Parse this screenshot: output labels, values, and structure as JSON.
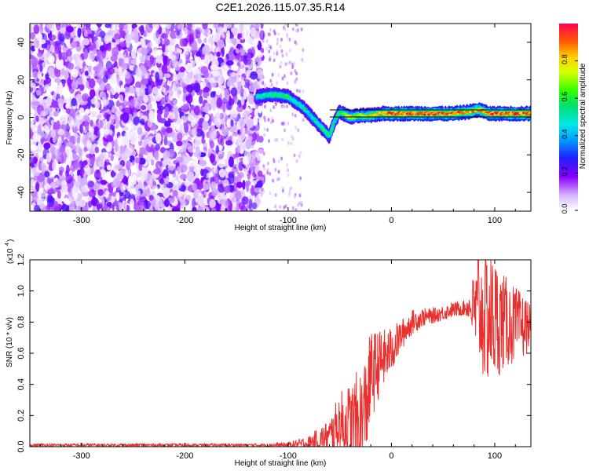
{
  "title": "C2E1.2026.115.07.35.R14",
  "chart_data": [
    {
      "type": "heatmap",
      "name": "spectrogram",
      "xlabel": "Height of straight line (km)",
      "ylabel": "Frequency (Hz)",
      "xlim": [
        -350,
        135
      ],
      "ylim": [
        -50,
        50
      ],
      "xticks": [
        -300,
        -200,
        -100,
        0,
        100
      ],
      "xtick_labels": [
        "-300",
        "-200",
        "-100",
        "0",
        "100"
      ],
      "yticks": [
        -40,
        -20,
        0,
        20,
        40
      ],
      "ytick_labels": [
        "-40",
        "-20",
        "0",
        "20",
        "40"
      ],
      "colorbar": {
        "label": "Normalized spectral amplitude",
        "range": [
          0,
          1
        ],
        "ticks": [
          0.0,
          0.2,
          0.4,
          0.6,
          0.8
        ],
        "tick_labels": [
          "0.0",
          "0.2",
          "0.4",
          "0.6",
          "0.8"
        ]
      },
      "noise_region_x": [
        -350,
        -125
      ],
      "signal_track": {
        "x": [
          -130,
          -120,
          -110,
          -100,
          -95,
          -90,
          -85,
          -80,
          -75,
          -70,
          -65,
          -60,
          -55,
          -50,
          -40,
          -30,
          -20,
          -10,
          0,
          20,
          40,
          60,
          75,
          85,
          95,
          110,
          135
        ],
        "y": [
          11,
          12,
          12,
          11,
          9,
          7,
          5,
          2,
          -1,
          -4,
          -7,
          -10,
          -2,
          3,
          0,
          1,
          1,
          2,
          2,
          2,
          2,
          2,
          3,
          4,
          2,
          2,
          2
        ],
        "intensity": [
          0.5,
          0.55,
          0.55,
          0.55,
          0.5,
          0.5,
          0.5,
          0.45,
          0.5,
          0.5,
          0.55,
          0.6,
          0.5,
          0.6,
          0.75,
          0.7,
          0.75,
          0.8,
          0.9,
          0.9,
          0.92,
          0.92,
          0.85,
          0.85,
          0.9,
          0.9,
          0.92
        ]
      }
    },
    {
      "type": "line",
      "name": "snr",
      "xlabel": "Height of straight line (km)",
      "ylabel": "SNR (10 * v/v)",
      "yscale_label": "(x10",
      "yscale_exponent": "4",
      "xlim": [
        -350,
        135
      ],
      "ylim": [
        0,
        1.2
      ],
      "xticks": [
        -300,
        -200,
        -100,
        0,
        100
      ],
      "xtick_labels": [
        "-300",
        "-200",
        "-100",
        "0",
        "100"
      ],
      "yticks": [
        0.0,
        0.2,
        0.4,
        0.6,
        0.8,
        1.0,
        1.2
      ],
      "ytick_labels": [
        "0.0",
        "0.2",
        "0.4",
        "0.6",
        "0.8",
        "1.0",
        "1.2"
      ],
      "color": "#e8302e",
      "envelope": {
        "x": [
          -350,
          -120,
          -100,
          -80,
          -60,
          -50,
          -40,
          -30,
          -25,
          -20,
          -10,
          0,
          10,
          20,
          30,
          40,
          50,
          60,
          70,
          75,
          80,
          85,
          90,
          95,
          100,
          110,
          120,
          130,
          135
        ],
        "base": [
          0.01,
          0.01,
          0.01,
          0.02,
          0.06,
          0.15,
          0.12,
          0.12,
          0.25,
          0.45,
          0.55,
          0.62,
          0.72,
          0.8,
          0.83,
          0.84,
          0.86,
          0.88,
          0.89,
          0.9,
          0.88,
          0.85,
          0.85,
          0.83,
          0.82,
          0.8,
          0.78,
          0.77,
          0.8
        ],
        "noise": [
          0.01,
          0.01,
          0.02,
          0.05,
          0.12,
          0.2,
          0.3,
          0.4,
          0.35,
          0.3,
          0.2,
          0.15,
          0.1,
          0.08,
          0.06,
          0.05,
          0.05,
          0.05,
          0.05,
          0.08,
          0.25,
          0.35,
          0.45,
          0.45,
          0.4,
          0.3,
          0.25,
          0.2,
          0.1
        ]
      },
      "peak": {
        "x": 84,
        "y": 1.2
      }
    }
  ],
  "colors": {
    "purple": "#7a00e6",
    "track_cold": "#0050ff",
    "track_mid": "#00d4ff",
    "track_warm": "#30ff30",
    "track_hot": "#ff2000",
    "snr_line": "#e8302e"
  }
}
